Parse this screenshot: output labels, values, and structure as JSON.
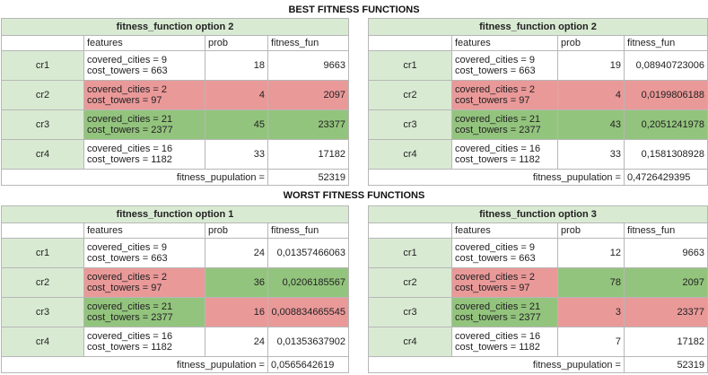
{
  "sections": {
    "best": "BEST FITNESS FUNCTIONS",
    "worst": "WORST FITNESS FUNCTIONS"
  },
  "colors": {
    "header_green": "#d9ead3",
    "bad_red": "#ea9999",
    "good_green": "#93c47d",
    "grid": "#b7b7b7"
  },
  "tables": [
    {
      "title": "fitness_function option 2",
      "headers": [
        "features",
        "prob",
        "fitness_fun"
      ],
      "rows": [
        {
          "cr": "cr1",
          "f1": "covered_cities = 9",
          "f2": "cost_towers = 663",
          "prob": "18",
          "fit": "9663"
        },
        {
          "cr": "cr2",
          "f1": "covered_cities = 2",
          "f2": "cost_towers = 97",
          "prob": "4",
          "fit": "2097"
        },
        {
          "cr": "cr3",
          "f1": "covered_cities = 21",
          "f2": "cost_towers = 2377",
          "prob": "45",
          "fit": "23377"
        },
        {
          "cr": "cr4",
          "f1": "covered_cities = 16",
          "f2": "cost_towers = 1182",
          "prob": "33",
          "fit": "17182"
        }
      ],
      "pop_label": "fitness_pupulation =",
      "pop_value": "52319"
    },
    {
      "title": "fitness_function option 2",
      "headers": [
        "features",
        "prob",
        "fitness_fun"
      ],
      "rows": [
        {
          "cr": "cr1",
          "f1": "covered_cities = 9",
          "f2": "cost_towers = 663",
          "prob": "19",
          "fit": "0,08940723006"
        },
        {
          "cr": "cr2",
          "f1": "covered_cities = 2",
          "f2": "cost_towers = 97",
          "prob": "4",
          "fit": "0,0199806188"
        },
        {
          "cr": "cr3",
          "f1": "covered_cities = 21",
          "f2": "cost_towers = 2377",
          "prob": "43",
          "fit": "0,2051241978"
        },
        {
          "cr": "cr4",
          "f1": "covered_cities = 16",
          "f2": "cost_towers = 1182",
          "prob": "33",
          "fit": "0,1581308928"
        }
      ],
      "pop_label": "fitness_pupulation =",
      "pop_value": "0,4726429395"
    },
    {
      "title": "fitness_function option 1",
      "headers": [
        "features",
        "prob",
        "fitness_fun"
      ],
      "rows": [
        {
          "cr": "cr1",
          "f1": "covered_cities = 9",
          "f2": "cost_towers = 663",
          "prob": "24",
          "fit": "0,01357466063"
        },
        {
          "cr": "cr2",
          "f1": "covered_cities = 2",
          "f2": "cost_towers = 97",
          "prob": "36",
          "fit": "0,0206185567"
        },
        {
          "cr": "cr3",
          "f1": "covered_cities = 21",
          "f2": "cost_towers = 2377",
          "prob": "16",
          "fit": "0,008834665545"
        },
        {
          "cr": "cr4",
          "f1": "covered_cities = 16",
          "f2": "cost_towers = 1182",
          "prob": "24",
          "fit": "0,01353637902"
        }
      ],
      "pop_label": "fitness_pupulation =",
      "pop_value": "0,0565642619"
    },
    {
      "title": "fitness_function option 3",
      "headers": [
        "features",
        "prob",
        "fitness_fun"
      ],
      "rows": [
        {
          "cr": "cr1",
          "f1": "covered_cities = 9",
          "f2": "cost_towers = 663",
          "prob": "12",
          "fit": "9663"
        },
        {
          "cr": "cr2",
          "f1": "covered_cities = 2",
          "f2": "cost_towers = 97",
          "prob": "78",
          "fit": "2097"
        },
        {
          "cr": "cr3",
          "f1": "covered_cities = 21",
          "f2": "cost_towers = 2377",
          "prob": "3",
          "fit": "23377"
        },
        {
          "cr": "cr4",
          "f1": "covered_cities = 16",
          "f2": "cost_towers = 1182",
          "prob": "7",
          "fit": "17182"
        }
      ],
      "pop_label": "fitness_pupulation =",
      "pop_value": "52319"
    }
  ]
}
